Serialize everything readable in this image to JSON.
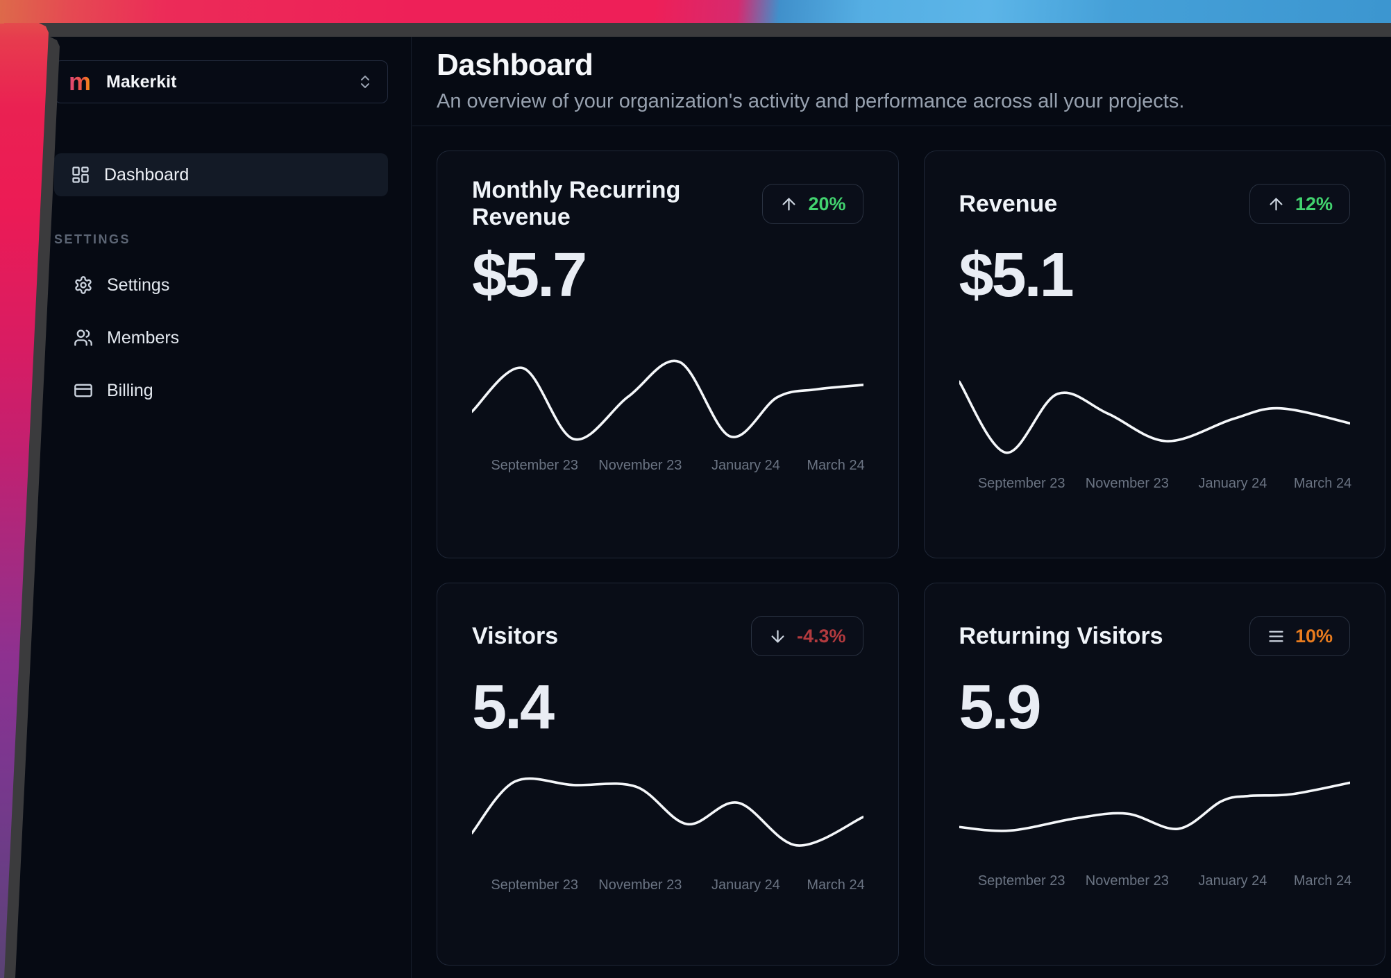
{
  "sidebar": {
    "workspace_selector": {
      "logo_letter": "m",
      "name": "Makerkit"
    },
    "nav": [
      {
        "label": "Dashboard"
      }
    ],
    "section_label": "SETTINGS",
    "settings_nav": [
      {
        "label": "Settings"
      },
      {
        "label": "Members"
      },
      {
        "label": "Billing"
      }
    ]
  },
  "header": {
    "title": "Dashboard",
    "subtitle": "An overview of your organization's activity and performance across all your projects."
  },
  "cards": [
    {
      "title": "Monthly Recurring Revenue",
      "value": "$5.7",
      "trend": "20%",
      "trend_direction": "up",
      "trend_color": "#42d36f",
      "trend_icon": "arrow-up-icon"
    },
    {
      "title": "Revenue",
      "value": "$5.1",
      "trend": "12%",
      "trend_direction": "up",
      "trend_color": "#42d36f",
      "trend_icon": "arrow-up-icon"
    },
    {
      "title": "Visitors",
      "value": "5.4",
      "trend": "-4.3%",
      "trend_direction": "down",
      "trend_color": "#b23a3e",
      "trend_icon": "arrow-down-icon"
    },
    {
      "title": "Returning Visitors",
      "value": "5.9",
      "trend": "10%",
      "trend_direction": "neutral",
      "trend_color": "#e97c1e",
      "trend_icon": "menu-icon"
    }
  ],
  "chart_data": [
    {
      "type": "line",
      "title": "Monthly Recurring Revenue sparkline",
      "line_color": "#f5f7fa",
      "x_labels": [
        "September 23",
        "November 23",
        "January 24",
        "March 24"
      ],
      "x_label_positions_pct": [
        16,
        43,
        70,
        93
      ],
      "y_axis": "hidden",
      "grid": "off",
      "legend": "none",
      "points_note": "normalized coords, x 0-100 left-right, y 0-100 top-down",
      "points": [
        [
          0,
          62
        ],
        [
          13,
          13
        ],
        [
          26,
          93
        ],
        [
          40,
          45
        ],
        [
          53,
          6
        ],
        [
          66,
          90
        ],
        [
          78,
          46
        ],
        [
          88,
          37
        ],
        [
          100,
          32
        ]
      ]
    },
    {
      "type": "line",
      "title": "Revenue sparkline",
      "line_color": "#f5f7fa",
      "x_labels": [
        "September 23",
        "November 23",
        "January 24",
        "March 24"
      ],
      "x_label_positions_pct": [
        16,
        43,
        70,
        93
      ],
      "y_axis": "hidden",
      "grid": "off",
      "legend": "none",
      "points_note": "normalized coords, x 0-100 left-right, y 0-100 top-down",
      "points": [
        [
          0,
          8
        ],
        [
          12,
          88
        ],
        [
          25,
          22
        ],
        [
          38,
          44
        ],
        [
          53,
          75
        ],
        [
          70,
          50
        ],
        [
          82,
          38
        ],
        [
          100,
          55
        ]
      ]
    },
    {
      "type": "line",
      "title": "Visitors sparkline",
      "line_color": "#f5f7fa",
      "x_labels": [
        "September 23",
        "November 23",
        "January 24",
        "March 24"
      ],
      "x_label_positions_pct": [
        16,
        43,
        70,
        93
      ],
      "y_axis": "hidden",
      "grid": "off",
      "legend": "none",
      "points_note": "normalized coords, x 0-100 left-right, y 0-100 top-down",
      "points": [
        [
          0,
          64
        ],
        [
          11,
          6
        ],
        [
          26,
          10
        ],
        [
          42,
          12
        ],
        [
          55,
          54
        ],
        [
          68,
          30
        ],
        [
          83,
          78
        ],
        [
          100,
          46
        ]
      ]
    },
    {
      "type": "line",
      "title": "Returning Visitors sparkline",
      "line_color": "#f5f7fa",
      "x_labels": [
        "September 23",
        "November 23",
        "January 24",
        "March 24"
      ],
      "x_label_positions_pct": [
        16,
        43,
        70,
        93
      ],
      "y_axis": "hidden",
      "grid": "off",
      "legend": "none",
      "points_note": "normalized coords, x 0-100 left-right, y 0-100 top-down",
      "points": [
        [
          0,
          62
        ],
        [
          13,
          66
        ],
        [
          30,
          52
        ],
        [
          43,
          47
        ],
        [
          56,
          64
        ],
        [
          67,
          33
        ],
        [
          74,
          27
        ],
        [
          85,
          25
        ],
        [
          100,
          12
        ]
      ]
    }
  ]
}
